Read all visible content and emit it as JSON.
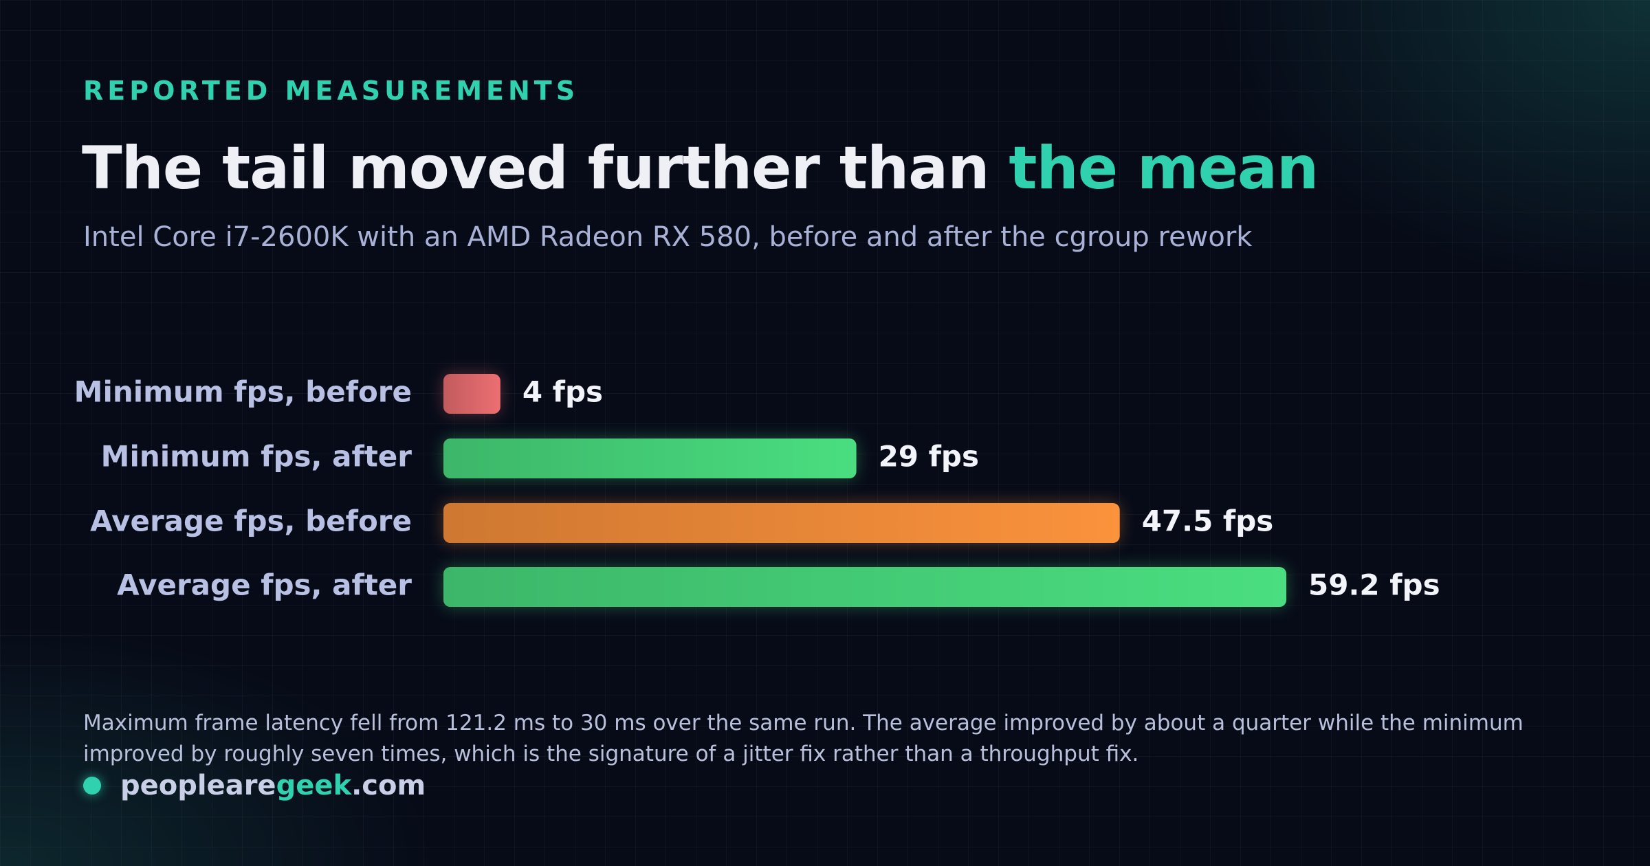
{
  "eyebrow": "REPORTED MEASUREMENTS",
  "chart_data": {
    "type": "hbar",
    "title": [
      "The tail moved further than ",
      "the mean"
    ],
    "subtitle": "Intel Core i7-2600K with an AMD Radeon RX 580, before and after the cgroup rework",
    "categories": [
      "Minimum fps, before",
      "Minimum fps, after",
      "Average fps, before",
      "Average fps, after"
    ],
    "values": [
      4,
      29,
      47.5,
      59.2
    ],
    "value_labels": [
      "4 fps",
      "29 fps",
      "47.5 fps",
      "59.2 fps"
    ],
    "colors": [
      "#ec6f72",
      "#4ade80",
      "#fb923c",
      "#4ade80"
    ],
    "note": "Maximum frame latency fell from 121.2 ms to 30 ms over the same run. The average improved by about a quarter while the minimum improved by roughly seven times, which is the signature of a jitter fix rather than a throughput fix."
  },
  "brand": [
    "peopleare",
    "geek",
    ".com"
  ]
}
